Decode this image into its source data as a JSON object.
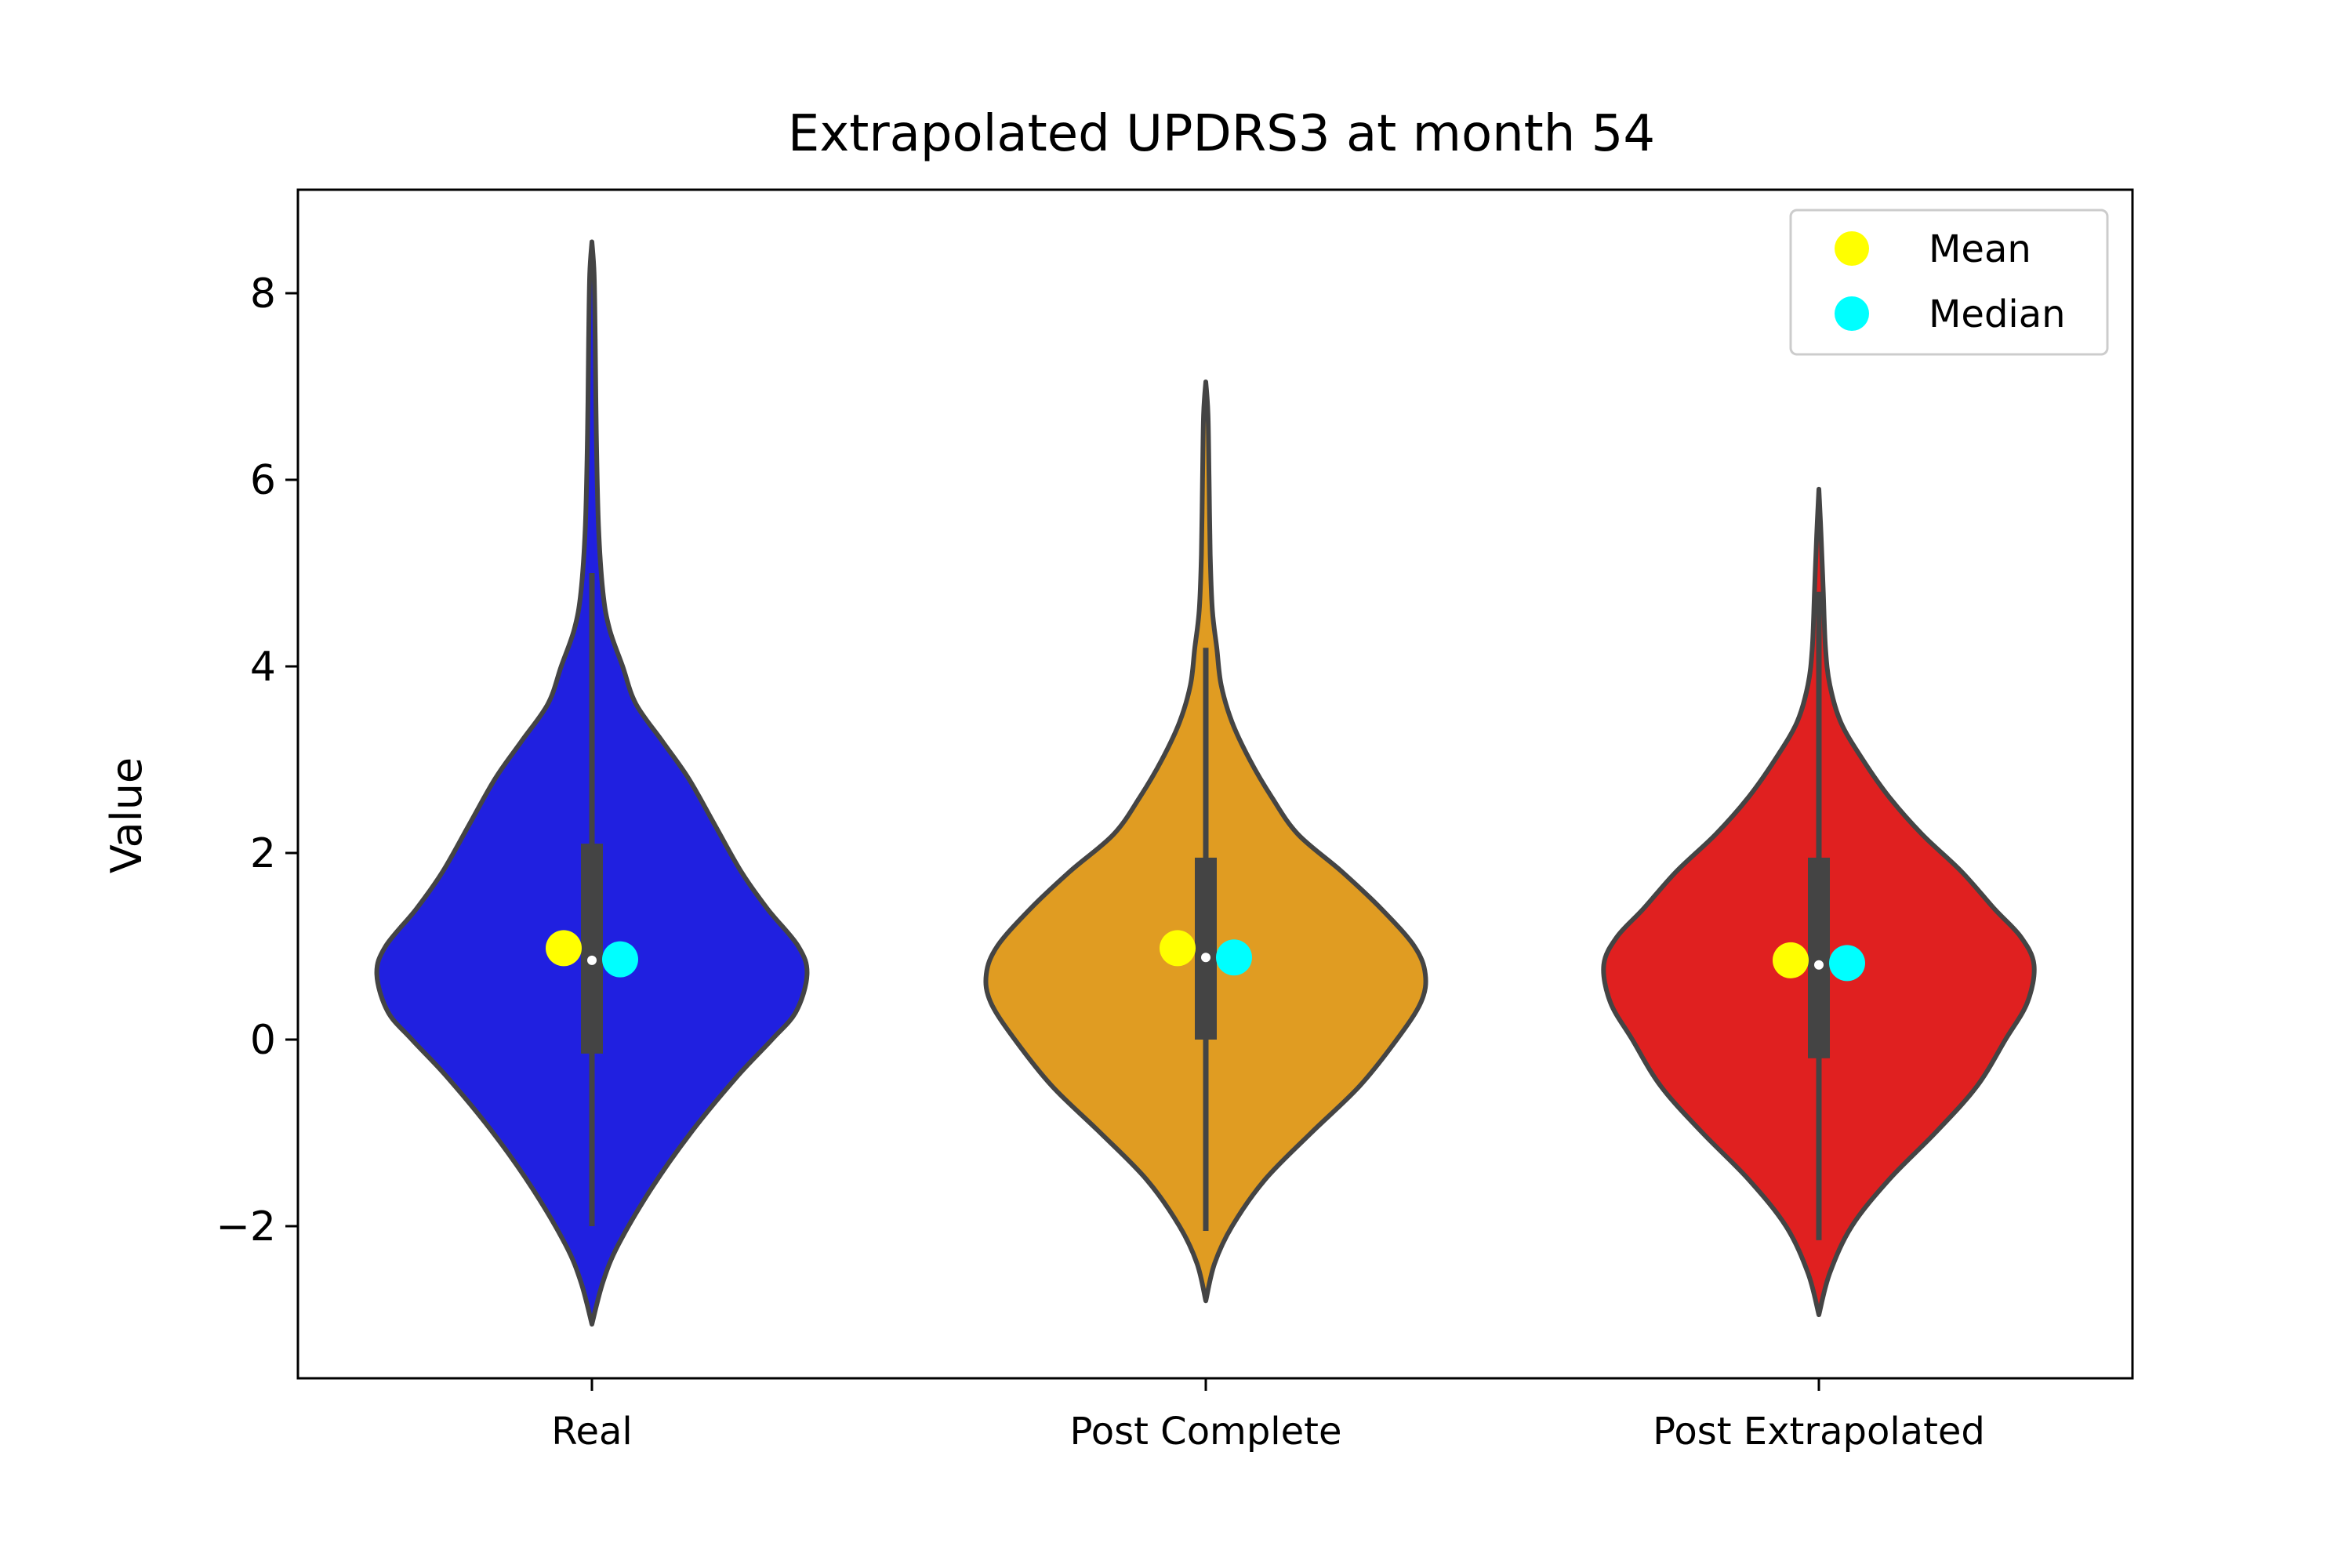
{
  "chart_data": {
    "type": "violin",
    "title": "Extrapolated UPDRS3 at month 54",
    "xlabel": "",
    "ylabel": "Value",
    "ylim": [
      -3.6,
      9.1
    ],
    "yticks": [
      -2,
      0,
      2,
      4,
      6,
      8
    ],
    "ytick_labels": [
      "−2",
      "0",
      "2",
      "4",
      "6",
      "8"
    ],
    "grid": false,
    "legend": {
      "placement": "top-right",
      "entries": [
        {
          "label": "Mean",
          "color": "#ffff00"
        },
        {
          "label": "Median",
          "color": "#00ffff"
        }
      ]
    },
    "outline_color": "#444444",
    "series": [
      {
        "name": "Real",
        "color": "#2020e0",
        "min": -3.05,
        "max": 8.55,
        "whisker_low": -2.0,
        "whisker_high": 5.0,
        "q1": -0.15,
        "q3": 2.1,
        "median": 0.85,
        "mean_marker": 0.98,
        "median_marker": 0.86,
        "density": [
          [
            -3.05,
            0.0
          ],
          [
            -2.6,
            0.05
          ],
          [
            -2.2,
            0.12
          ],
          [
            -1.6,
            0.27
          ],
          [
            -1.0,
            0.45
          ],
          [
            -0.4,
            0.66
          ],
          [
            0.0,
            0.82
          ],
          [
            0.3,
            0.93
          ],
          [
            0.7,
            0.98
          ],
          [
            1.0,
            0.94
          ],
          [
            1.4,
            0.8
          ],
          [
            1.8,
            0.68
          ],
          [
            2.3,
            0.56
          ],
          [
            2.8,
            0.44
          ],
          [
            3.2,
            0.32
          ],
          [
            3.6,
            0.2
          ],
          [
            4.0,
            0.14
          ],
          [
            4.4,
            0.08
          ],
          [
            4.8,
            0.05
          ],
          [
            5.5,
            0.03
          ],
          [
            6.5,
            0.02
          ],
          [
            7.5,
            0.015
          ],
          [
            8.2,
            0.01
          ],
          [
            8.55,
            0.0
          ]
        ]
      },
      {
        "name": "Post Complete",
        "color": "#e09c22",
        "min": -2.8,
        "max": 7.05,
        "whisker_low": -2.05,
        "whisker_high": 4.2,
        "q1": 0.0,
        "q3": 1.95,
        "median": 0.88,
        "mean_marker": 0.98,
        "median_marker": 0.88,
        "density": [
          [
            -2.8,
            0.0
          ],
          [
            -2.4,
            0.04
          ],
          [
            -2.0,
            0.12
          ],
          [
            -1.5,
            0.27
          ],
          [
            -1.0,
            0.48
          ],
          [
            -0.5,
            0.7
          ],
          [
            0.0,
            0.87
          ],
          [
            0.4,
            0.98
          ],
          [
            0.7,
            1.0
          ],
          [
            1.0,
            0.95
          ],
          [
            1.4,
            0.8
          ],
          [
            1.8,
            0.62
          ],
          [
            2.2,
            0.42
          ],
          [
            2.6,
            0.3
          ],
          [
            3.0,
            0.2
          ],
          [
            3.4,
            0.12
          ],
          [
            3.8,
            0.07
          ],
          [
            4.2,
            0.05
          ],
          [
            4.6,
            0.03
          ],
          [
            5.2,
            0.02
          ],
          [
            6.0,
            0.015
          ],
          [
            6.7,
            0.01
          ],
          [
            7.05,
            0.0
          ]
        ]
      },
      {
        "name": "Post Extrapolated",
        "color": "#e02020",
        "min": -2.95,
        "max": 5.9,
        "whisker_low": -2.15,
        "whisker_high": 4.8,
        "q1": -0.2,
        "q3": 1.95,
        "median": 0.8,
        "mean_marker": 0.85,
        "median_marker": 0.82,
        "density": [
          [
            -2.95,
            0.0
          ],
          [
            -2.5,
            0.05
          ],
          [
            -2.0,
            0.15
          ],
          [
            -1.5,
            0.32
          ],
          [
            -1.0,
            0.53
          ],
          [
            -0.5,
            0.72
          ],
          [
            0.0,
            0.85
          ],
          [
            0.4,
            0.95
          ],
          [
            0.8,
            0.98
          ],
          [
            1.1,
            0.92
          ],
          [
            1.4,
            0.8
          ],
          [
            1.8,
            0.65
          ],
          [
            2.2,
            0.47
          ],
          [
            2.6,
            0.32
          ],
          [
            3.0,
            0.2
          ],
          [
            3.4,
            0.1
          ],
          [
            3.8,
            0.05
          ],
          [
            4.2,
            0.03
          ],
          [
            4.8,
            0.02
          ],
          [
            5.4,
            0.01
          ],
          [
            5.9,
            0.0
          ]
        ]
      }
    ]
  }
}
